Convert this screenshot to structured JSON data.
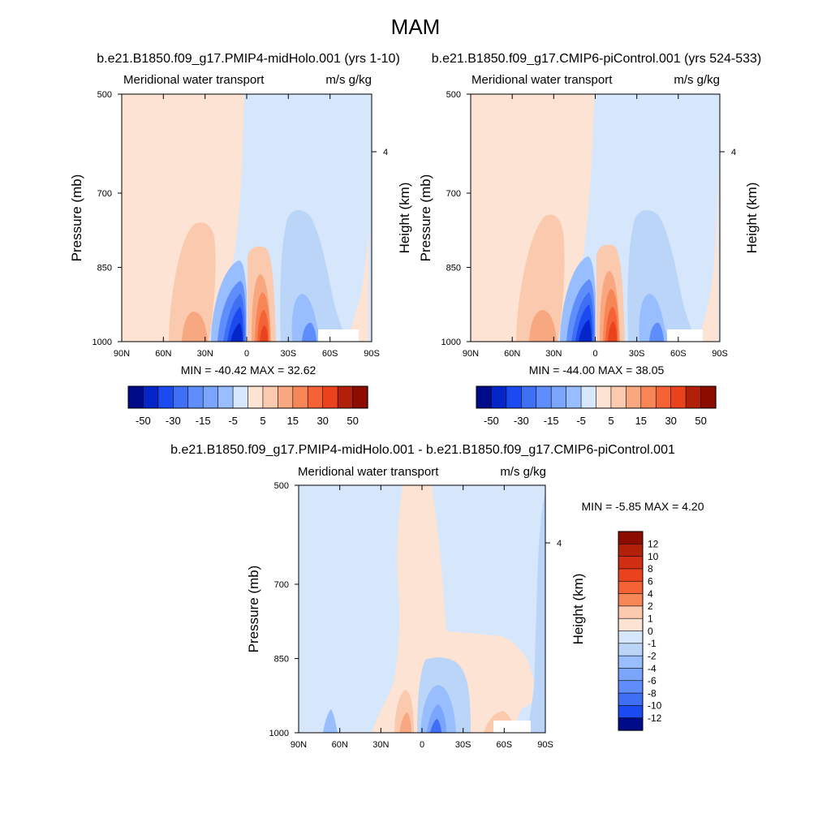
{
  "page": {
    "season": "MAM"
  },
  "colors": {
    "warm": [
      "#fde3d3",
      "#fbc9ad",
      "#f8a880",
      "#f68656",
      "#f46235",
      "#e9421d",
      "#d12d13",
      "#b32009",
      "#8c0c00"
    ],
    "cool": [
      "#d6e6fb",
      "#bad5f8",
      "#98beff",
      "#7aa5fb",
      "#5f8dfc",
      "#3f6ff5",
      "#1a4af0",
      "#0426c8",
      "#000b8a"
    ]
  },
  "panels": [
    {
      "title": "b.e21.B1850.f09_g17.PMIP4-midHolo.001 (yrs 1-10)",
      "left_label": "Meridional water transport",
      "right_label": "m/s g/kg",
      "ylabel": "Pressure (mb)",
      "ylabel_right": "Height (km)",
      "stats": "MIN = -40.42  MAX =  32.62",
      "bar_labels": [
        "-50",
        "-30",
        "-15",
        "-5",
        "5",
        "15",
        "30",
        "50"
      ]
    },
    {
      "title": "b.e21.B1850.f09_g17.CMIP6-piControl.001 (yrs 524-533)",
      "left_label": "Meridional water transport",
      "right_label": "m/s g/kg",
      "ylabel": "Pressure (mb)",
      "ylabel_right": "Height (km)",
      "stats": "MIN = -44.00  MAX =  38.05",
      "bar_labels": [
        "-50",
        "-30",
        "-15",
        "-5",
        "5",
        "15",
        "30",
        "50"
      ]
    },
    {
      "title": "b.e21.B1850.f09_g17.PMIP4-midHolo.001 - b.e21.B1850.f09_g17.CMIP6-piControl.001",
      "left_label": "Meridional water transport",
      "right_label": "m/s g/kg",
      "ylabel": "Pressure (mb)",
      "ylabel_right": "Height (km)",
      "stats": "MIN =  -5.85  MAX =   4.20",
      "bar_labels": [
        "12",
        "10",
        "8",
        "6",
        "4",
        "2",
        "1",
        "0",
        "-1",
        "-2",
        "-4",
        "-6",
        "-8",
        "-10",
        "-12"
      ]
    }
  ],
  "chart_data": [
    {
      "type": "heatmap",
      "title": "b.e21.B1850.f09_g17.PMIP4-midHolo.001 (yrs 1-10)",
      "variable": "Meridional water transport",
      "units": "m/s g/kg",
      "xlabel": "",
      "ylabel": "Pressure (mb)",
      "ylabel_right": "Height (km)",
      "x_ticks": [
        "90N",
        "60N",
        "30N",
        "0",
        "30S",
        "60S",
        "90S"
      ],
      "y_ticks": [
        500,
        700,
        850,
        1000
      ],
      "y_right_ticks": [
        "4"
      ],
      "ylim": [
        1000,
        500
      ],
      "min": -40.42,
      "max": 32.62,
      "contour_levels": [
        -50,
        -40,
        -30,
        -20,
        -15,
        -10,
        -5,
        -1,
        1,
        5,
        10,
        15,
        20,
        30,
        40,
        50
      ],
      "colorbar_labels": [
        "-50",
        "-30",
        "-15",
        "-5",
        "5",
        "15",
        "30",
        "50"
      ],
      "features": [
        {
          "lat": 35,
          "p_top": 760,
          "value": 5
        },
        {
          "lat": 8,
          "p_top": 840,
          "value": -40
        },
        {
          "lat": -10,
          "p_top": 820,
          "value": 32
        },
        {
          "lat": -40,
          "p_top": 710,
          "value": -8
        }
      ]
    },
    {
      "type": "heatmap",
      "title": "b.e21.B1850.f09_g17.CMIP6-piControl.001 (yrs 524-533)",
      "variable": "Meridional water transport",
      "units": "m/s g/kg",
      "xlabel": "",
      "ylabel": "Pressure (mb)",
      "ylabel_right": "Height (km)",
      "x_ticks": [
        "90N",
        "60N",
        "30N",
        "0",
        "30S",
        "60S",
        "90S"
      ],
      "y_ticks": [
        500,
        700,
        850,
        1000
      ],
      "y_right_ticks": [
        "4"
      ],
      "ylim": [
        1000,
        500
      ],
      "min": -44.0,
      "max": 38.05,
      "contour_levels": [
        -50,
        -40,
        -30,
        -20,
        -15,
        -10,
        -5,
        -1,
        1,
        5,
        10,
        15,
        20,
        30,
        40,
        50
      ],
      "colorbar_labels": [
        "-50",
        "-30",
        "-15",
        "-5",
        "5",
        "15",
        "30",
        "50"
      ],
      "features": [
        {
          "lat": 35,
          "p_top": 760,
          "value": 5
        },
        {
          "lat": 8,
          "p_top": 840,
          "value": -44
        },
        {
          "lat": -10,
          "p_top": 820,
          "value": 38
        },
        {
          "lat": -40,
          "p_top": 710,
          "value": -8
        }
      ]
    },
    {
      "type": "heatmap",
      "title": "b.e21.B1850.f09_g17.PMIP4-midHolo.001 - b.e21.B1850.f09_g17.CMIP6-piControl.001",
      "variable": "Meridional water transport",
      "units": "m/s g/kg",
      "xlabel": "",
      "ylabel": "Pressure (mb)",
      "ylabel_right": "Height (km)",
      "x_ticks": [
        "90N",
        "60N",
        "30N",
        "0",
        "30S",
        "60S",
        "90S"
      ],
      "y_ticks": [
        500,
        700,
        850,
        1000
      ],
      "y_right_ticks": [
        "4"
      ],
      "ylim": [
        1000,
        500
      ],
      "min": -5.85,
      "max": 4.2,
      "contour_levels": [
        -12,
        -10,
        -8,
        -6,
        -4,
        -2,
        -1,
        0,
        1,
        2,
        4,
        6,
        8,
        10,
        12
      ],
      "colorbar_labels": [
        "12",
        "10",
        "8",
        "6",
        "4",
        "2",
        "1",
        "0",
        "-1",
        "-2",
        "-4",
        "-6",
        "-8",
        "-10",
        "-12"
      ],
      "features": [
        {
          "lat": 5,
          "p_top": 900,
          "value": 2
        },
        {
          "lat": -10,
          "p_top": 880,
          "value": -5.85
        },
        {
          "lat": -45,
          "p_top": 880,
          "value": 1
        }
      ]
    }
  ]
}
